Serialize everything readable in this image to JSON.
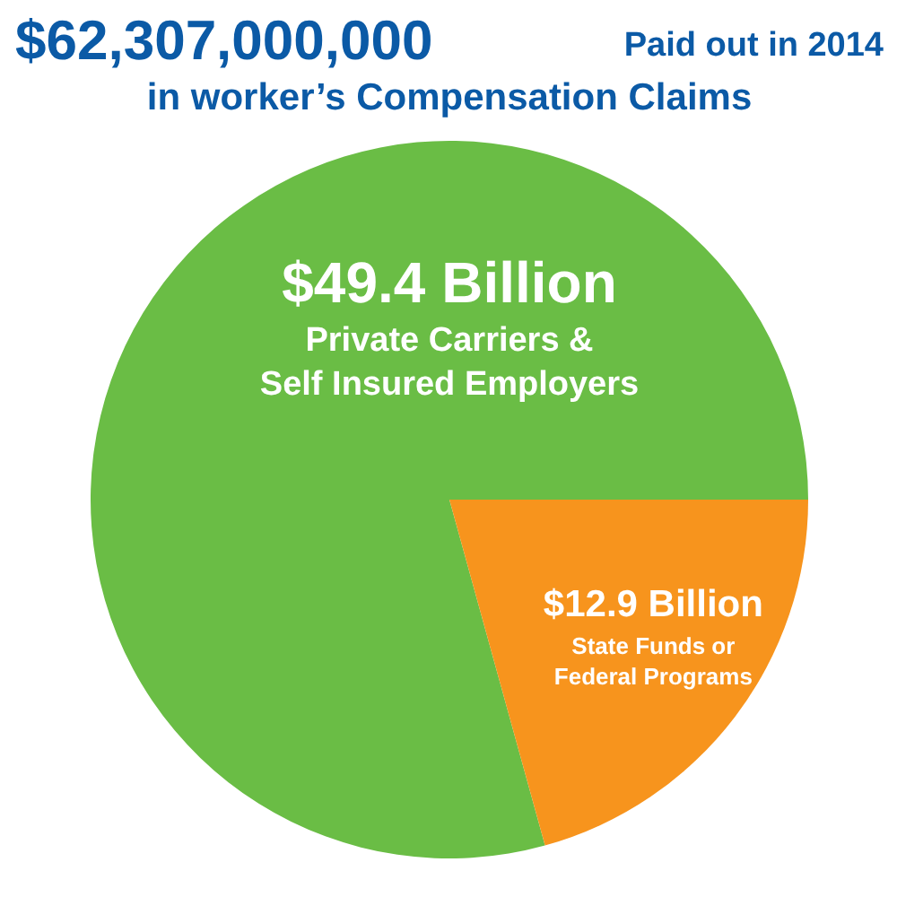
{
  "chart_data": {
    "type": "pie",
    "title": "$62,307,000,000",
    "subtitle": "Paid out in 2014 in worker’s Compensation Claims",
    "categories": [
      "Private Carriers & Self Insured Employers",
      "State Funds or Federal Programs"
    ],
    "values": [
      49.4,
      12.9
    ],
    "colors": [
      "#6abd45",
      "#f7941d"
    ],
    "value_labels": [
      "$49.4 Billion",
      "$12.9 Billion"
    ]
  }
}
